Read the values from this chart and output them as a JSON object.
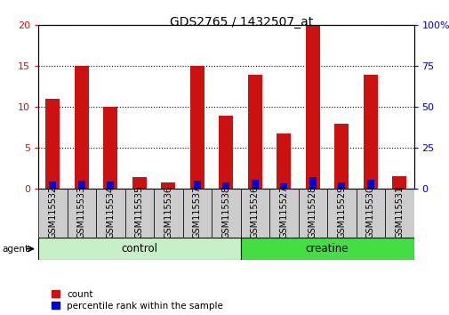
{
  "title": "GDS2765 / 1432507_at",
  "samples": [
    "GSM115532",
    "GSM115533",
    "GSM115534",
    "GSM115535",
    "GSM115536",
    "GSM115537",
    "GSM115538",
    "GSM115526",
    "GSM115527",
    "GSM115528",
    "GSM115529",
    "GSM115530",
    "GSM115531"
  ],
  "counts": [
    11,
    15,
    10,
    1.5,
    0.8,
    15,
    9,
    14,
    6.8,
    20,
    8,
    14,
    1.6
  ],
  "percentile_ranks": [
    4.5,
    5.2,
    4.5,
    1.0,
    0.3,
    5.3,
    3.8,
    5.4,
    3.3,
    7.2,
    3.9,
    5.4,
    1.0
  ],
  "groups": [
    "control",
    "control",
    "control",
    "control",
    "control",
    "control",
    "control",
    "creatine",
    "creatine",
    "creatine",
    "creatine",
    "creatine",
    "creatine"
  ],
  "group_labels": [
    "control",
    "creatine"
  ],
  "group_colors": [
    "#c8f0c8",
    "#44dd44"
  ],
  "bar_color": "#cc1111",
  "percentile_color": "#0000cc",
  "ylim_left": [
    0,
    20
  ],
  "ylim_right": [
    0,
    100
  ],
  "yticks_left": [
    0,
    5,
    10,
    15,
    20
  ],
  "yticks_right": [
    0,
    25,
    50,
    75,
    100
  ],
  "left_tick_color": "#cc1111",
  "right_tick_color": "#0000cc",
  "bar_width": 0.5,
  "perc_bar_width": 0.25,
  "agent_label": "agent",
  "legend_count_label": "count",
  "legend_percentile_label": "percentile rank within the sample",
  "title_fontsize": 10,
  "tick_label_fontsize": 7,
  "group_label_fontsize": 8.5,
  "legend_fontsize": 7.5,
  "control_count": 7,
  "creatine_count": 6,
  "tick_box_color": "#cccccc"
}
